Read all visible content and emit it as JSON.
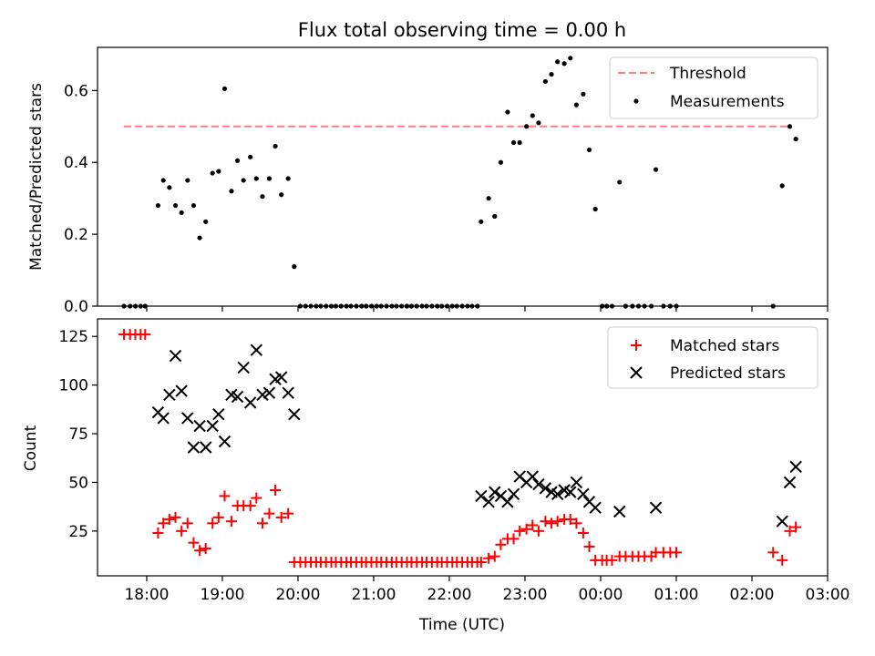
{
  "title": "Flux total observing time = 0.00 h",
  "colors": {
    "threshold": "#ff7f7f",
    "measurements": "#000000",
    "matched": "#ff0000",
    "predicted": "#000000"
  },
  "chart_data": [
    {
      "type": "scatter",
      "title": "Flux total observing time = 0.00 h",
      "ylabel": "Matched/Predicted stars",
      "xlabel": "",
      "xlim": [
        -0.65,
        9.0
      ],
      "ylim": [
        0,
        0.72
      ],
      "x_ticks": [
        0,
        1,
        2,
        3,
        4,
        5,
        6,
        7,
        8,
        9
      ],
      "x_ticklabels": [],
      "y_ticks": [
        0.0,
        0.2,
        0.4,
        0.6
      ],
      "y_ticklabels": [
        "0.0",
        "0.2",
        "0.4",
        "0.6"
      ],
      "grid": false,
      "legend": {
        "position": "top-right",
        "entries": [
          "Threshold",
          "Measurements"
        ]
      },
      "series": [
        {
          "name": "Threshold",
          "kind": "line",
          "x": [
            -0.3,
            8.5
          ],
          "y": [
            0.5,
            0.5
          ]
        },
        {
          "name": "Measurements",
          "kind": "scatter",
          "x": [
            -0.3,
            -0.22,
            -0.15,
            -0.08,
            -0.02,
            0.15,
            0.22,
            0.3,
            0.38,
            0.46,
            0.54,
            0.62,
            0.7,
            0.78,
            0.87,
            0.95,
            1.03,
            1.12,
            1.2,
            1.28,
            1.37,
            1.45,
            1.53,
            1.62,
            1.7,
            1.78,
            1.87,
            1.95,
            2.03,
            2.1,
            2.17,
            2.24,
            2.3,
            2.37,
            2.44,
            2.5,
            2.57,
            2.64,
            2.7,
            2.77,
            2.84,
            2.9,
            2.97,
            3.04,
            3.1,
            3.17,
            3.24,
            3.3,
            3.37,
            3.44,
            3.5,
            3.57,
            3.64,
            3.7,
            3.77,
            3.84,
            3.9,
            3.97,
            4.04,
            4.1,
            4.17,
            4.24,
            4.3,
            4.37,
            4.42,
            4.52,
            4.6,
            4.68,
            4.77,
            4.85,
            4.93,
            5.02,
            5.1,
            5.18,
            5.27,
            5.35,
            5.43,
            5.52,
            5.6,
            5.68,
            5.77,
            5.85,
            5.93,
            6.02,
            6.08,
            6.15,
            6.25,
            6.33,
            6.42,
            6.5,
            6.58,
            6.67,
            6.73,
            6.83,
            6.92,
            7.0,
            8.28,
            8.4,
            8.5,
            8.58
          ],
          "y": [
            0,
            0,
            0,
            0,
            0,
            0.28,
            0.35,
            0.33,
            0.28,
            0.26,
            0.35,
            0.28,
            0.19,
            0.235,
            0.37,
            0.375,
            0.605,
            0.32,
            0.405,
            0.35,
            0.415,
            0.355,
            0.305,
            0.355,
            0.445,
            0.31,
            0.355,
            0.11,
            0,
            0,
            0,
            0,
            0,
            0,
            0,
            0,
            0,
            0,
            0,
            0,
            0,
            0,
            0,
            0,
            0,
            0,
            0,
            0,
            0,
            0,
            0,
            0,
            0,
            0,
            0,
            0,
            0,
            0,
            0,
            0,
            0,
            0,
            0,
            0,
            0.235,
            0.3,
            0.25,
            0.4,
            0.54,
            0.455,
            0.455,
            0.5,
            0.53,
            0.51,
            0.625,
            0.645,
            0.68,
            0.675,
            0.69,
            0.56,
            0.59,
            0.435,
            0.27,
            0,
            0,
            0,
            0.345,
            0,
            0,
            0,
            0,
            0,
            0.38,
            0,
            0,
            0,
            0,
            0.335,
            0.5,
            0.465
          ]
        }
      ]
    },
    {
      "type": "scatter",
      "title": "",
      "ylabel": "Count",
      "xlabel": "Time (UTC)",
      "xlim": [
        -0.65,
        9.0
      ],
      "ylim": [
        2,
        134
      ],
      "x_ticks": [
        0,
        1,
        2,
        3,
        4,
        5,
        6,
        7,
        8,
        9
      ],
      "x_ticklabels": [
        "18:00",
        "19:00",
        "20:00",
        "21:00",
        "22:00",
        "23:00",
        "00:00",
        "01:00",
        "02:00",
        "03:00"
      ],
      "y_ticks": [
        25,
        50,
        75,
        100,
        125
      ],
      "y_ticklabels": [
        "25",
        "50",
        "75",
        "100",
        "125"
      ],
      "grid": false,
      "legend": {
        "position": "top-right",
        "entries": [
          "Matched stars",
          "Predicted stars"
        ]
      },
      "series": [
        {
          "name": "Matched stars",
          "kind": "plus",
          "x": [
            -0.3,
            -0.22,
            -0.15,
            -0.08,
            -0.02,
            0.15,
            0.22,
            0.3,
            0.38,
            0.46,
            0.54,
            0.62,
            0.7,
            0.78,
            0.87,
            0.95,
            1.03,
            1.12,
            1.2,
            1.28,
            1.37,
            1.45,
            1.53,
            1.62,
            1.7,
            1.78,
            1.87,
            1.95,
            2.03,
            2.1,
            2.17,
            2.24,
            2.3,
            2.37,
            2.44,
            2.5,
            2.57,
            2.64,
            2.7,
            2.77,
            2.84,
            2.9,
            2.97,
            3.04,
            3.1,
            3.17,
            3.24,
            3.3,
            3.37,
            3.44,
            3.5,
            3.57,
            3.64,
            3.7,
            3.77,
            3.84,
            3.9,
            3.97,
            4.04,
            4.1,
            4.17,
            4.24,
            4.3,
            4.37,
            4.42,
            4.52,
            4.6,
            4.68,
            4.77,
            4.85,
            4.93,
            5.02,
            5.1,
            5.18,
            5.27,
            5.35,
            5.43,
            5.52,
            5.6,
            5.68,
            5.77,
            5.85,
            5.93,
            6.02,
            6.08,
            6.15,
            6.25,
            6.33,
            6.42,
            6.5,
            6.58,
            6.67,
            6.73,
            6.83,
            6.92,
            7.0,
            8.28,
            8.4,
            8.5,
            8.58
          ],
          "y": [
            126,
            126,
            126,
            126,
            126,
            24,
            29,
            31,
            32,
            25,
            29,
            19,
            15,
            16,
            29,
            32,
            43,
            30,
            38,
            38,
            38,
            42,
            29,
            34,
            46,
            32,
            34,
            9,
            9,
            9,
            9,
            9,
            9,
            9,
            9,
            9,
            9,
            9,
            9,
            9,
            9,
            9,
            9,
            9,
            9,
            9,
            9,
            9,
            9,
            9,
            9,
            9,
            9,
            9,
            9,
            9,
            9,
            9,
            9,
            9,
            9,
            9,
            9,
            9,
            9,
            11,
            12,
            18,
            21,
            21,
            25,
            26,
            28,
            25,
            30,
            29,
            30,
            31,
            31,
            29,
            24,
            17,
            10,
            10,
            10,
            10,
            12,
            12,
            12,
            12,
            12,
            12,
            14,
            14,
            14,
            14,
            14,
            10,
            25,
            27
          ]
        },
        {
          "name": "Predicted stars",
          "kind": "x",
          "x": [
            0.15,
            0.22,
            0.3,
            0.38,
            0.46,
            0.54,
            0.62,
            0.7,
            0.78,
            0.87,
            0.95,
            1.03,
            1.12,
            1.2,
            1.28,
            1.37,
            1.45,
            1.53,
            1.62,
            1.7,
            1.78,
            1.87,
            1.95,
            4.42,
            4.52,
            4.6,
            4.68,
            4.77,
            4.85,
            4.93,
            5.02,
            5.1,
            5.18,
            5.27,
            5.35,
            5.43,
            5.52,
            5.6,
            5.68,
            5.77,
            5.85,
            5.93,
            6.25,
            6.73,
            8.4,
            8.5,
            8.58
          ],
          "y": [
            86,
            83,
            95,
            115,
            97,
            83,
            68,
            79,
            68,
            79,
            85,
            71,
            95,
            94,
            109,
            91,
            118,
            95,
            96,
            103,
            104,
            96,
            85,
            43,
            40,
            45,
            43,
            40,
            44,
            53,
            50,
            53,
            49,
            47,
            45,
            44,
            46,
            45,
            50,
            44,
            40,
            37,
            35,
            37,
            30,
            50,
            58
          ]
        }
      ]
    }
  ]
}
